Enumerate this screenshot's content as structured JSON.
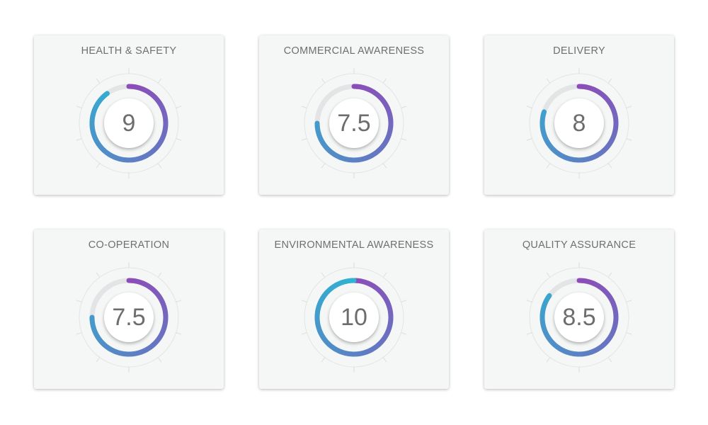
{
  "scale_max": 10,
  "colors": {
    "start": "#8c4db8",
    "middle": "#5a82c5",
    "end": "#2db4d2",
    "track": "#e2e4e5",
    "card_bg": "#f5f6f6"
  },
  "cards": [
    {
      "title": "HEALTH & SAFETY",
      "value": "9"
    },
    {
      "title": "COMMERCIAL AWARENESS",
      "value": "7.5"
    },
    {
      "title": "DELIVERY",
      "value": "8"
    },
    {
      "title": "CO-OPERATION",
      "value": "7.5"
    },
    {
      "title": "ENVIRONMENTAL AWARENESS",
      "value": "10"
    },
    {
      "title": "QUALITY ASSURANCE",
      "value": "8.5"
    }
  ]
}
